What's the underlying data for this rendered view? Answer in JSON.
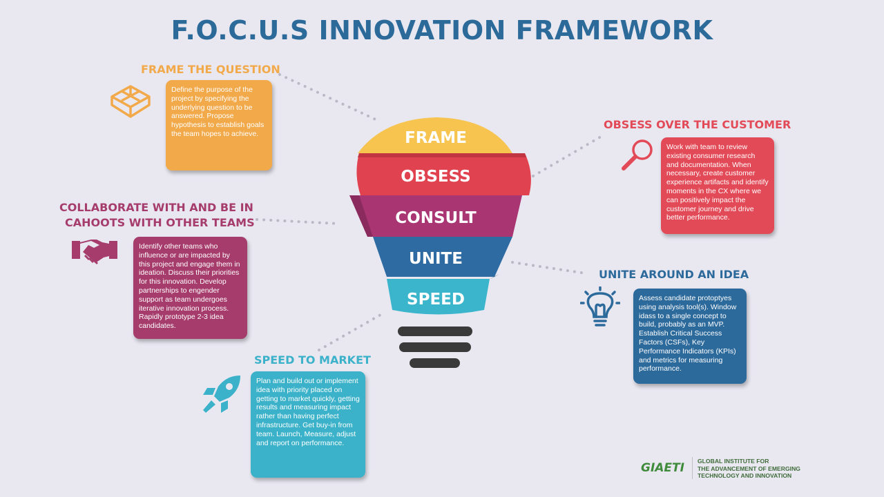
{
  "title": "F.O.C.U.S INNOVATION FRAMEWORK",
  "bulb": {
    "bands": [
      "FRAME",
      "OBSESS",
      "CONSULT",
      "UNITE",
      "SPEED"
    ]
  },
  "sections": {
    "frame": {
      "heading": "FRAME THE QUESTION",
      "text": "Define the purpose of the project by specifying the underlying question to be answered. Propose hypothesis to establish goals the team hopes to achieve.",
      "color": "#f2a94a"
    },
    "obsess": {
      "heading": "OBSESS OVER THE CUSTOMER",
      "text": "Work with team to review existing consumer research and documentation. When necessary, create customer experience artifacts and identify moments in the CX where we can positively impact the customer journey and drive better performance.",
      "color": "#e34a57"
    },
    "collaborate": {
      "heading_line1": "COLLABORATE WITH AND BE IN",
      "heading_line2": "CAHOOTS WITH OTHER TEAMS",
      "text": "Identify other teams who influence or are impacted by this project and engage them in ideation. Discuss their priorities for this innovation. Develop partnerships to engender support as team undergoes iterative innovation process. Rapidly prototype 2-3 idea candidates.",
      "color": "#a63c6c"
    },
    "unite": {
      "heading": "UNITE AROUND AN IDEA",
      "text": "Assess candidate protoptyes using analysis tool(s). Window idass to a single concept to build, probably as an MVP. Establish Critical Success Factors (CSFs), Key Performance Indicators (KPIs) and metrics  for measuring performance.",
      "color": "#2d6a9c"
    },
    "speed": {
      "heading": "SPEED TO MARKET",
      "text": "Plan and build out or implement idea with priority placed on getting to market quickly, getting results and measuring impact rather than having perfect infrastructure. Get buy-in from team. Launch, Measure, adjust and report on performance.",
      "color": "#3bb2c9"
    }
  },
  "logo": {
    "word": "GIAETI",
    "line1": "GLOBAL INSTITUTE FOR",
    "line2": "THE ADVANCEMENT OF EMERGING",
    "line3": "TECHNOLOGY AND INNOVATION"
  }
}
